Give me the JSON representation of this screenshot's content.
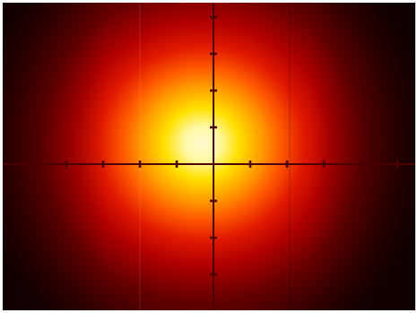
{
  "image": {
    "subject": "beam-profile-heatmap",
    "palette": {
      "background": "#ffffff",
      "dark": "#1a0000",
      "deep_red": "#5a0000",
      "red": "#b00000",
      "orange_red": "#e03000",
      "orange": "#ff7000",
      "yellow": "#ffe000",
      "core": "#fffbd0",
      "crosshair": "#4a0000"
    }
  }
}
